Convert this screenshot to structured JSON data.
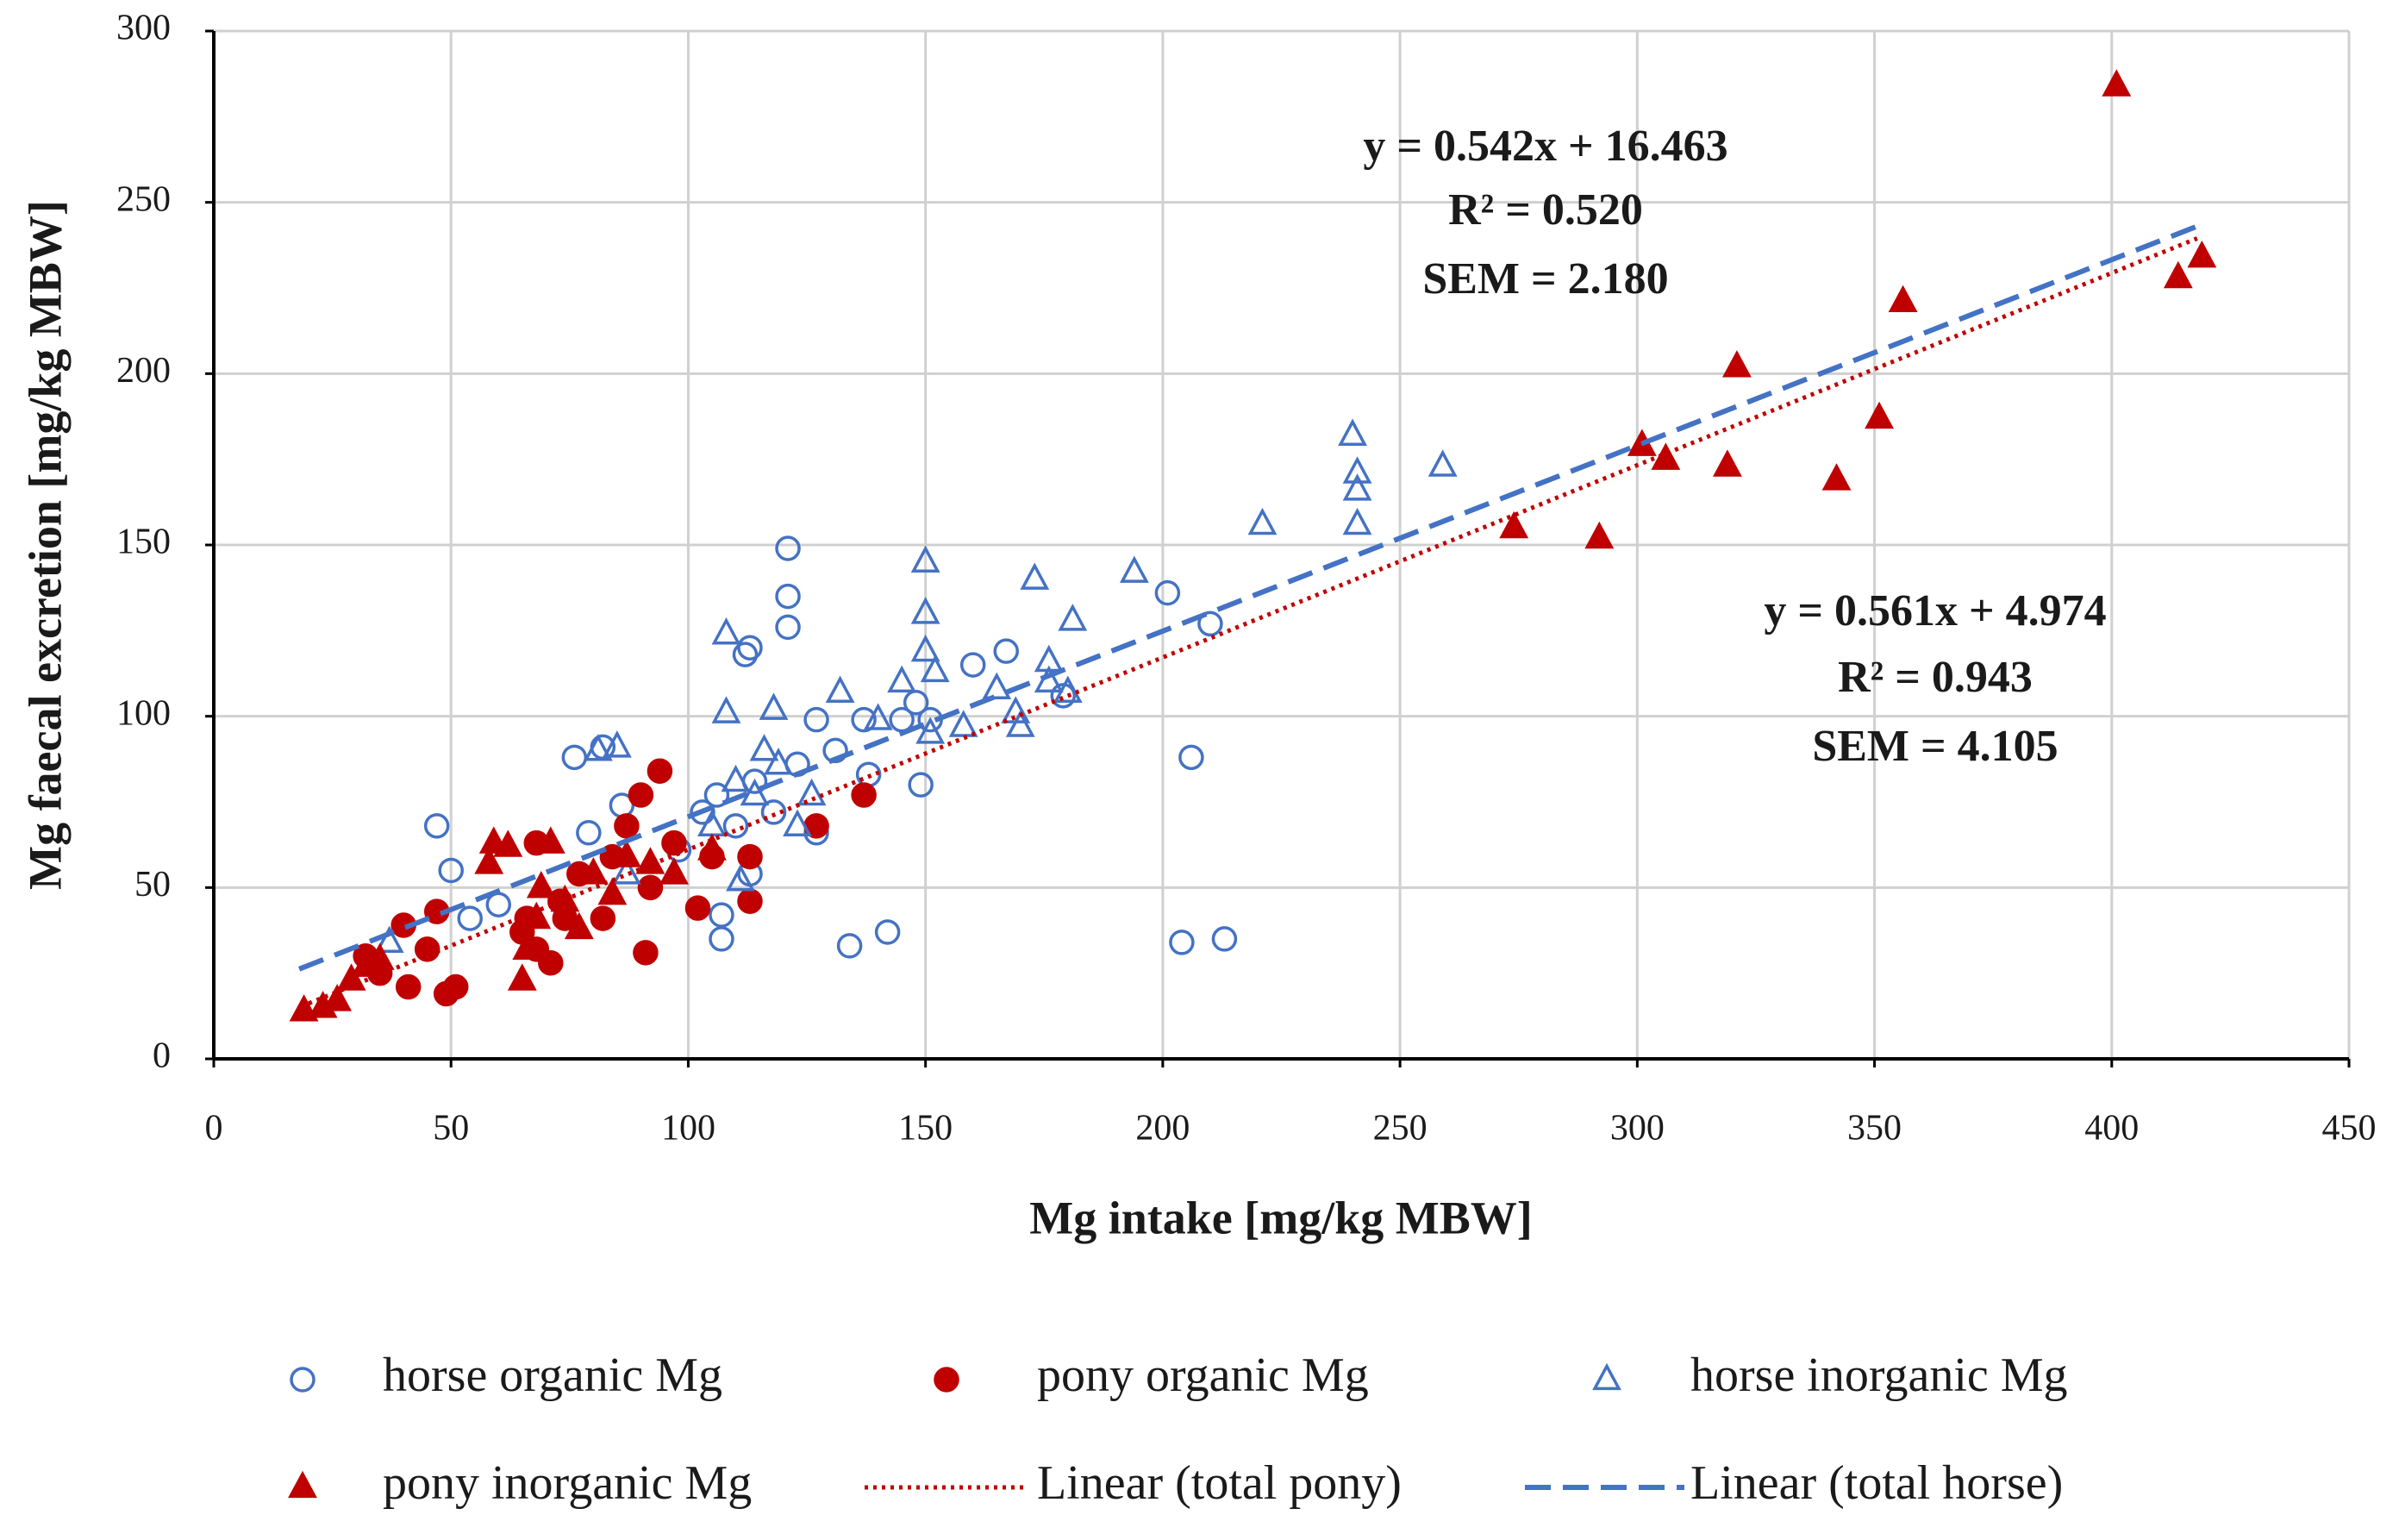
{
  "chart_data": {
    "type": "scatter",
    "x_label": "Mg intake [mg/kg MBW]",
    "y_label": "Mg faecal excretion [mg/kg MBW]",
    "xlim": [
      0,
      450
    ],
    "xticks": [
      0,
      50,
      100,
      150,
      200,
      250,
      300,
      350,
      400,
      450
    ],
    "ylim": [
      0,
      300
    ],
    "yticks": [
      0,
      50,
      100,
      150,
      200,
      250,
      300
    ],
    "grid": true,
    "legend": "bottom",
    "annotations": [
      [
        "y = 0.542x + 16.463",
        "R² = 0.520",
        "SEM = 2.180"
      ],
      [
        "y = 0.561x + 4.974",
        "R² = 0.943",
        "SEM = 4.105"
      ]
    ],
    "series": [
      {
        "name": "horse organic Mg",
        "color": "#4472c4",
        "marker": "open-circle",
        "x": [
          47,
          50,
          54,
          60,
          76,
          82,
          79,
          86,
          107,
          107,
          112,
          113,
          121,
          121,
          121,
          134,
          142,
          137,
          138,
          149,
          151,
          160,
          167,
          179,
          201,
          206,
          210,
          204,
          213,
          106,
          110,
          114,
          118,
          123,
          127,
          127,
          131,
          103,
          113,
          98,
          145,
          148
        ],
        "values": [
          68,
          55,
          41,
          45,
          88,
          91,
          66,
          74,
          42,
          35,
          118,
          120,
          149,
          135,
          126,
          33,
          37,
          99,
          83,
          80,
          99,
          115,
          119,
          106,
          136,
          88,
          127,
          34,
          35,
          77,
          68,
          81,
          72,
          86,
          99,
          66,
          90,
          72,
          54,
          61,
          99,
          104
        ]
      },
      {
        "name": "pony organic Mg",
        "color": "#c00000",
        "marker": "filled-circle",
        "x": [
          41,
          40,
          45,
          49,
          51,
          35,
          32,
          47,
          68,
          66,
          68,
          73,
          77,
          82,
          84,
          90,
          91,
          94,
          102,
          105,
          113,
          113,
          137,
          127,
          97,
          71,
          65,
          92,
          74,
          87
        ],
        "values": [
          21,
          39,
          32,
          19,
          21,
          25,
          30,
          43,
          63,
          41,
          32,
          46,
          54,
          41,
          59,
          77,
          31,
          84,
          44,
          59,
          46,
          59,
          77,
          68,
          63,
          28,
          37,
          50,
          41,
          68
        ]
      },
      {
        "name": "horse inorganic Mg",
        "color": "#4472c4",
        "marker": "open-triangle",
        "x": [
          37,
          81,
          85,
          87,
          108,
          108,
          118,
          111,
          97,
          132,
          140,
          145,
          150,
          150,
          150,
          152,
          151,
          158,
          165,
          169,
          170,
          173,
          176,
          176,
          181,
          180,
          194,
          221,
          240,
          241,
          241,
          241,
          259,
          114,
          119,
          123,
          110,
          105,
          116,
          126
        ],
        "values": [
          34,
          90,
          91,
          54,
          124,
          101,
          102,
          52,
          54,
          107,
          99,
          110,
          145,
          130,
          119,
          113,
          95,
          97,
          108,
          101,
          97,
          140,
          116,
          110,
          128,
          107,
          142,
          156,
          182,
          171,
          166,
          156,
          173,
          77,
          86,
          68,
          81,
          68,
          90,
          77
        ]
      },
      {
        "name": "pony inorganic Mg",
        "color": "#c00000",
        "marker": "filled-triangle",
        "x": [
          19,
          23,
          26,
          29,
          32,
          35,
          59,
          62,
          58,
          65,
          66,
          71,
          74,
          77,
          84,
          87,
          92,
          97,
          105,
          274,
          292,
          301,
          306,
          319,
          321,
          342,
          351,
          356,
          401,
          414,
          419,
          69,
          80,
          68
        ],
        "values": [
          14,
          15,
          17,
          23,
          27,
          29,
          63,
          62,
          57,
          23,
          32,
          63,
          46,
          38,
          48,
          59,
          57,
          54,
          61,
          155,
          152,
          179,
          175,
          173,
          202,
          169,
          187,
          221,
          284,
          228,
          234,
          50,
          54,
          41
        ]
      },
      {
        "name": "Linear (total pony)",
        "color": "#c00000",
        "marker": "dotted-line",
        "x": [
          20,
          418
        ],
        "values": [
          16.194,
          239.472
        ]
      },
      {
        "name": "Linear (total horse)",
        "color": "#4472c4",
        "marker": "dashed-line",
        "x": [
          18,
          418
        ],
        "values": [
          26.219,
          243.019
        ]
      }
    ]
  }
}
